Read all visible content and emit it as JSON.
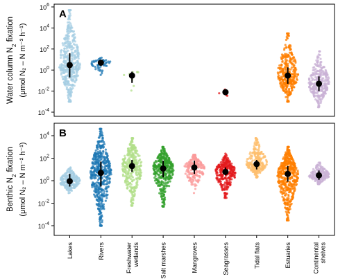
{
  "chart_data": [
    {
      "panel_label": "A",
      "type": "scatter",
      "subtype": "jitter-violin with median and range",
      "ylabel_line1": "Water column N",
      "ylabel_sub": "2",
      "ylabel_line1_tail": " fixation",
      "ylabel_line2": "(μmol N₂ – N m⁻³ h⁻¹)",
      "yscale": "log",
      "ylim": [
        0.0001,
        1000000
      ],
      "yticks": [
        {
          "value": 1000000,
          "base": "10",
          "exp": "6"
        },
        {
          "value": 10000,
          "base": "10",
          "exp": "4"
        },
        {
          "value": 100,
          "base": "10",
          "exp": "2"
        },
        {
          "value": 1,
          "base": "10",
          "exp": "0"
        },
        {
          "value": 0.01,
          "base": "10",
          "exp": "-2"
        },
        {
          "value": 0.0001,
          "base": "10",
          "exp": "-4"
        }
      ],
      "grid": false,
      "categories": [
        "Lakes",
        "Rivers",
        "Freshwater wetlands",
        "Salt marshes",
        "Mangroves",
        "Seagrasses",
        "Tidal flats",
        "Estuaries",
        "Continental shelves"
      ],
      "series": [
        {
          "category": "Lakes",
          "color": "#a6cee3",
          "median": 3,
          "range": [
            0.2,
            40
          ],
          "spread": [
            0.001,
            500000
          ],
          "n": 420
        },
        {
          "category": "Rivers",
          "color": "#1f78b4",
          "median": 5,
          "range": [
            4,
            7
          ],
          "spread": [
            0.3,
            15
          ],
          "n": 50
        },
        {
          "category": "Freshwater wetlands",
          "color": "#b2df8a",
          "median": 0.3,
          "range": [
            0.06,
            0.7
          ],
          "spread": [
            0.008,
            1.5
          ],
          "n": 8
        },
        {
          "category": "Seagrasses",
          "color": "#e31a1c",
          "median": 0.008,
          "range": [
            0.005,
            0.012
          ],
          "spread": [
            0.003,
            0.02
          ],
          "n": 4
        },
        {
          "category": "Estuaries",
          "color": "#ff7f00",
          "median": 0.3,
          "range": [
            0.05,
            1.8
          ],
          "spread": [
            0.001,
            3000
          ],
          "n": 350
        },
        {
          "category": "Continental shelves",
          "color": "#cab2d6",
          "median": 0.05,
          "range": [
            0.01,
            0.25
          ],
          "spread": [
            0.0003,
            60
          ],
          "n": 300
        }
      ]
    },
    {
      "panel_label": "B",
      "type": "scatter",
      "subtype": "jitter-violin with median and range",
      "ylabel_line1": "Benthic N",
      "ylabel_sub": "2",
      "ylabel_line1_tail": " fixation",
      "ylabel_line2": "(μmol N₂ – N m⁻² h⁻¹)",
      "yscale": "log",
      "ylim": [
        0.0001,
        10000
      ],
      "yticks": [
        {
          "value": 10000,
          "base": "10",
          "exp": "4"
        },
        {
          "value": 100,
          "base": "10",
          "exp": "2"
        },
        {
          "value": 1,
          "base": "10",
          "exp": "0"
        },
        {
          "value": 0.01,
          "base": "10",
          "exp": "-2"
        },
        {
          "value": 0.0001,
          "base": "10",
          "exp": "-4"
        }
      ],
      "grid": false,
      "categories": [
        "Lakes",
        "Rivers",
        "Freshwater wetlands",
        "Salt marshes",
        "Mangroves",
        "Seagrasses",
        "Tidal flats",
        "Estuaries",
        "Continental shelves"
      ],
      "series": [
        {
          "category": "Lakes",
          "color": "#a6cee3",
          "median": 0.9,
          "range": [
            0.3,
            4
          ],
          "spread": [
            0.08,
            15
          ],
          "n": 260
        },
        {
          "category": "Rivers",
          "color": "#1f78b4",
          "median": 5,
          "range": [
            0.3,
            50
          ],
          "spread": [
            0.0001,
            40000
          ],
          "n": 520
        },
        {
          "category": "Freshwater wetlands",
          "color": "#b2df8a",
          "median": 20,
          "range": [
            6,
            70
          ],
          "spread": [
            0.006,
            6000
          ],
          "n": 330
        },
        {
          "category": "Salt marshes",
          "color": "#33a02c",
          "median": 12,
          "range": [
            2,
            60
          ],
          "spread": [
            0.005,
            1000
          ],
          "n": 400
        },
        {
          "category": "Mangroves",
          "color": "#fb9a99",
          "median": 15,
          "range": [
            4,
            60
          ],
          "spread": [
            0.08,
            200
          ],
          "n": 200
        },
        {
          "category": "Seagrasses",
          "color": "#e31a1c",
          "median": 6,
          "range": [
            3,
            15
          ],
          "spread": [
            0.03,
            250
          ],
          "n": 300
        },
        {
          "category": "Tidal flats",
          "color": "#fdbf6f",
          "median": 30,
          "range": [
            10,
            70
          ],
          "spread": [
            2,
            6000
          ],
          "n": 280
        },
        {
          "category": "Estuaries",
          "color": "#ff7f00",
          "median": 4,
          "range": [
            0.8,
            20
          ],
          "spread": [
            0.0003,
            1000
          ],
          "n": 500
        },
        {
          "category": "Continental shelves",
          "color": "#cab2d6",
          "median": 3,
          "range": [
            1.2,
            8
          ],
          "spread": [
            0.5,
            40
          ],
          "n": 180
        }
      ]
    }
  ],
  "xlabels": [
    {
      "line1": "Lakes",
      "line2": ""
    },
    {
      "line1": "Rivers",
      "line2": ""
    },
    {
      "line1": "Freshwater",
      "line2": "wetlands"
    },
    {
      "line1": "Salt marshes",
      "line2": ""
    },
    {
      "line1": "Mangroves",
      "line2": ""
    },
    {
      "line1": "Seagrasses",
      "line2": ""
    },
    {
      "line1": "Tidal flats",
      "line2": ""
    },
    {
      "line1": "Estuaries",
      "line2": ""
    },
    {
      "line1": "Continental",
      "line2": "shelves"
    }
  ]
}
